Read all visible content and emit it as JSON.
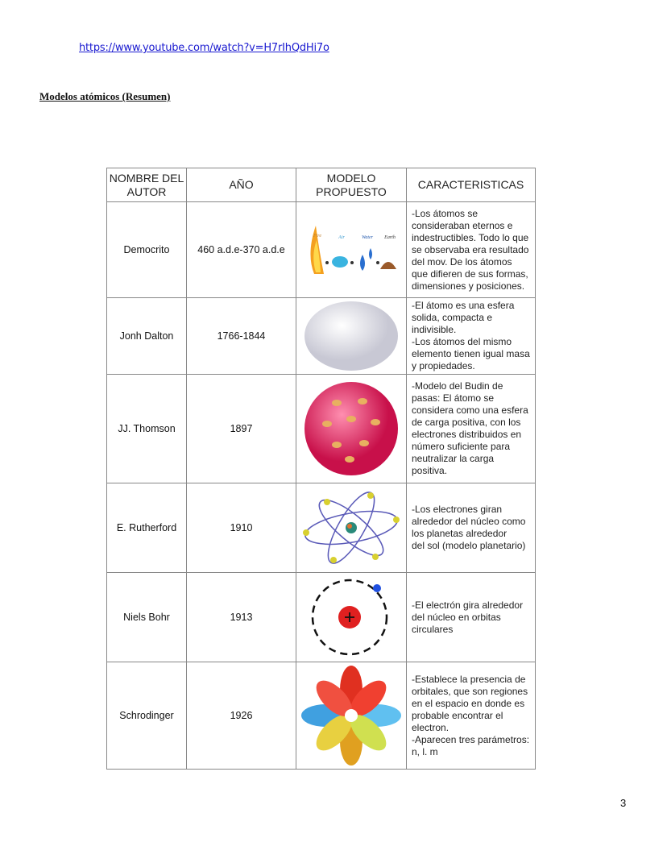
{
  "link": "https://www.youtube.com/watch?v=H7rIhQdHi7o",
  "title": "Modelos atómicos (Resumen)",
  "page_number": "3",
  "table": {
    "headers": [
      "NOMBRE DEL AUTOR",
      "AÑO",
      "MODELO PROPUESTO",
      "CARACTERISTICAS"
    ],
    "rows": [
      {
        "author": "Democrito",
        "year": "460 a.d.e-370 a.d.e",
        "image": "fire-air-water-earth-elements",
        "image_labels": [
          "Fire",
          "Air",
          "Water",
          "Earth"
        ],
        "description": "-Los átomos se consideraban eternos e indestructibles. Todo lo que se observaba era resultado del mov. De los átomos que difieren de sus formas, dimensiones y posiciones."
      },
      {
        "author": "Jonh Dalton",
        "year": "1766-1844",
        "image": "solid-sphere",
        "description": "-El átomo es una esfera solida, compacta e indivisible.\n-Los átomos del mismo elemento tienen igual masa y propiedades."
      },
      {
        "author": "JJ. Thomson",
        "year": "1897",
        "image": "plum-pudding-sphere",
        "description": "-Modelo del Budin de pasas: El átomo se considera como una esfera de carga positiva, con los electrones distribuidos en número suficiente para neutralizar la carga positiva."
      },
      {
        "author": "E. Rutherford",
        "year": "1910",
        "image": "planetary-orbits",
        "description": "-Los electrones giran alrededor del núcleo como los planetas alrededor\ndel sol (modelo planetario)"
      },
      {
        "author": "Niels Bohr",
        "year": "1913",
        "image": "nucleus-circular-orbit",
        "description": "-El electrón gira alrededor del núcleo en orbitas circulares"
      },
      {
        "author": "Schrodinger",
        "year": "1926",
        "image": "orbital-lobes",
        "description": "-Establece la presencia de orbitales, que son regiones en el espacio en donde es probable encontrar el electron.\n-Aparecen tres parámetros: n, l. m"
      }
    ]
  }
}
